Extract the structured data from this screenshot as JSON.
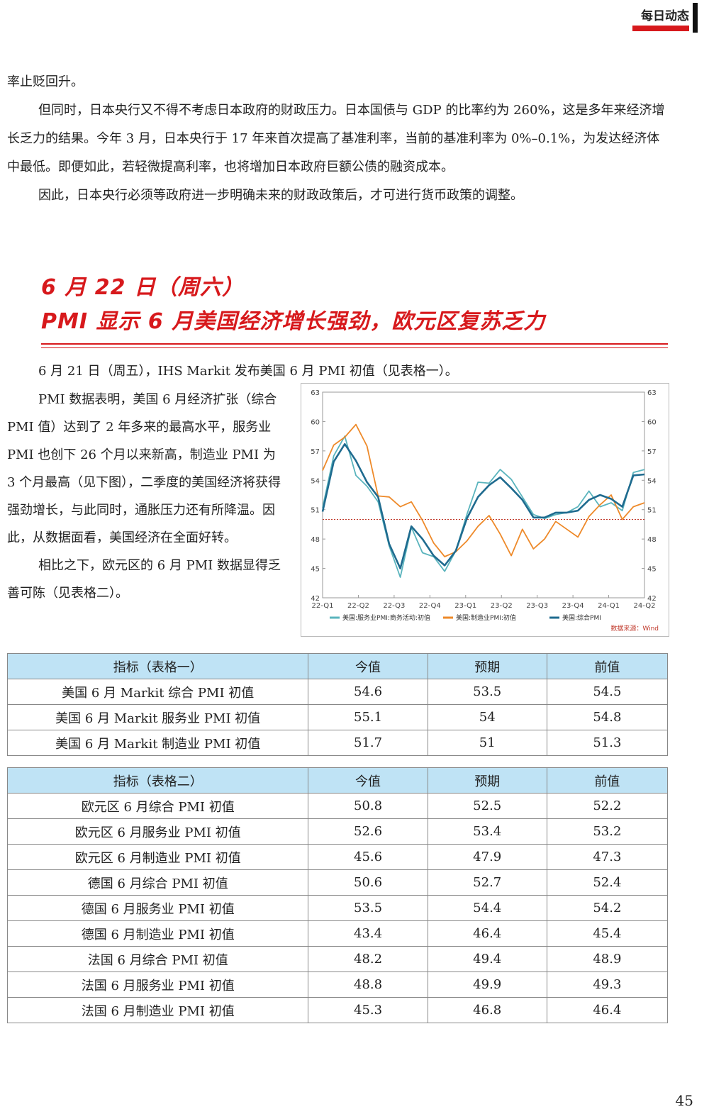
{
  "header": {
    "section_tag": "每日动态",
    "page_number": "45"
  },
  "intro_paragraphs": [
    {
      "text": "率止贬回升。",
      "indent": false
    },
    {
      "text": "但同时，日本央行又不得不考虑日本政府的财政压力。日本国债与 GDP 的比率约为 260%，这是多年来经济增长乏力的结果。今年 3 月，日本央行于 17 年来首次提高了基准利率，当前的基准利率为 0%–0.1%，为发达经济体中最低。即便如此，若轻微提高利率，也将增加日本政府巨额公债的融资成本。",
      "indent": true
    },
    {
      "text": "因此，日本央行必须等政府进一步明确未来的财政政策后，才可进行货币政策的调整。",
      "indent": true
    }
  ],
  "section": {
    "date_line": "6 月 22 日（周六）",
    "headline": "PMI 显示 6 月美国经济增长强劲，欧元区复苏乏力"
  },
  "body_first_line": "6 月 21 日（周五），IHS Markit 发布美国 6 月 PMI 初值（见表格一）。",
  "body_paragraphs": [
    "PMI 数据表明，美国 6 月经济扩张（综合 PMI 值）达到了 2 年多来的最高水平，服务业 PMI 也创下 26 个月以来新高，制造业 PMI 为 3 个月最高（见下图），二季度的美国经济将获得强劲增长，与此同时，通胀压力还有所降温。因此，从数据面看，美国经济在全面好转。",
    "相比之下，欧元区的 6 月 PMI 数据显得乏善可陈（见表格二）。"
  ],
  "chart_data": {
    "type": "line",
    "x_tick_labels": [
      "22-Q1",
      "22-Q2",
      "22-Q3",
      "22-Q4",
      "23-Q1",
      "23-Q2",
      "23-Q3",
      "23-Q4",
      "24-Q1",
      "24-Q2"
    ],
    "ylim": [
      42,
      63
    ],
    "y_ticks": [
      42,
      45,
      48,
      51,
      54,
      57,
      60,
      63
    ],
    "reference_line": 50,
    "source_note": "数据来源：Wind",
    "series": [
      {
        "name": "美国:服务业PMI:商务活动:初值",
        "color": "#5ab4bd",
        "values": [
          51.2,
          56.5,
          58.5,
          54.5,
          53.4,
          51.8,
          47.3,
          44.1,
          49.2,
          46.6,
          46.2,
          44.7,
          46.8,
          50.5,
          53.8,
          53.7,
          55.1,
          54.1,
          52.3,
          50.5,
          50.1,
          50.5,
          50.7,
          51.3,
          52.9,
          51.3,
          51.7,
          50.9,
          54.8,
          55.1
        ]
      },
      {
        "name": "美国:制造业PMI:初值",
        "color": "#ee8a2a",
        "values": [
          55.0,
          57.6,
          58.4,
          59.7,
          57.5,
          52.4,
          52.3,
          51.3,
          51.8,
          49.9,
          47.6,
          46.2,
          46.7,
          47.8,
          49.3,
          50.4,
          48.5,
          46.3,
          49.0,
          47.0,
          48.0,
          49.8,
          49.0,
          48.2,
          50.3,
          51.5,
          52.5,
          50.0,
          51.3,
          51.7
        ]
      },
      {
        "name": "美国:综合PMI",
        "color": "#1f6b8f",
        "values": [
          50.8,
          55.9,
          57.7,
          56.0,
          53.8,
          52.3,
          47.5,
          45.0,
          49.3,
          48.0,
          46.3,
          45.3,
          46.8,
          50.1,
          52.3,
          53.5,
          54.3,
          53.2,
          52.0,
          50.2,
          50.2,
          50.7,
          50.7,
          50.9,
          52.0,
          52.5,
          52.1,
          51.3,
          54.5,
          54.6
        ]
      }
    ]
  },
  "table1": {
    "headers": [
      "指标（表格一）",
      "今值",
      "预期",
      "前值"
    ],
    "rows": [
      [
        "美国 6 月 Markit 综合 PMI 初值",
        "54.6",
        "53.5",
        "54.5"
      ],
      [
        "美国 6 月 Markit 服务业 PMI 初值",
        "55.1",
        "54",
        "54.8"
      ],
      [
        "美国 6 月 Markit 制造业 PMI 初值",
        "51.7",
        "51",
        "51.3"
      ]
    ]
  },
  "table2": {
    "headers": [
      "指标（表格二）",
      "今值",
      "预期",
      "前值"
    ],
    "rows": [
      [
        "欧元区 6 月综合 PMI 初值",
        "50.8",
        "52.5",
        "52.2"
      ],
      [
        "欧元区 6 月服务业 PMI 初值",
        "52.6",
        "53.4",
        "53.2"
      ],
      [
        "欧元区 6 月制造业 PMI 初值",
        "45.6",
        "47.9",
        "47.3"
      ],
      [
        "德国 6 月综合 PMI 初值",
        "50.6",
        "52.7",
        "52.4"
      ],
      [
        "德国 6 月服务业 PMI 初值",
        "53.5",
        "54.4",
        "54.2"
      ],
      [
        "德国 6 月制造业 PMI 初值",
        "43.4",
        "46.4",
        "45.4"
      ],
      [
        "法国 6 月综合 PMI 初值",
        "48.2",
        "49.4",
        "48.9"
      ],
      [
        "法国 6 月服务业 PMI 初值",
        "48.8",
        "49.9",
        "49.3"
      ],
      [
        "法国 6 月制造业 PMI 初值",
        "45.3",
        "46.8",
        "46.4"
      ]
    ]
  }
}
